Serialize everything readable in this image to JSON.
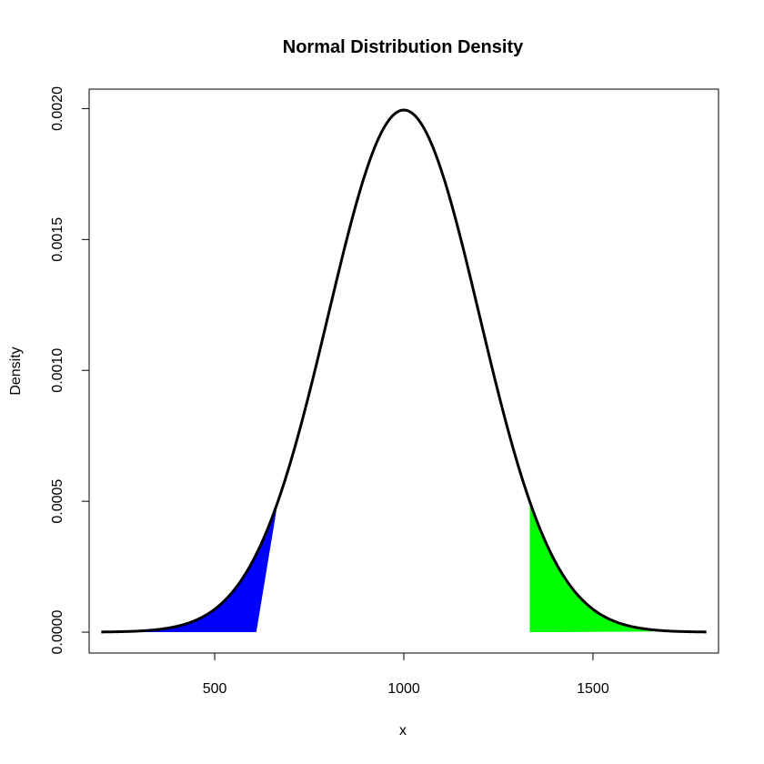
{
  "chart_data": {
    "type": "line",
    "title": "Normal Distribution Density",
    "xlabel": "x",
    "ylabel": "Density",
    "xlim": [
      168,
      1832
    ],
    "ylim": [
      -7.98e-05,
      0.0020745
    ],
    "x_ticks": [
      {
        "value": 500,
        "label": "500"
      },
      {
        "value": 1000,
        "label": "1000"
      },
      {
        "value": 1500,
        "label": "1500"
      }
    ],
    "y_ticks": [
      {
        "value": 0.0,
        "label": "0.0000"
      },
      {
        "value": 0.0005,
        "label": "0.0005"
      },
      {
        "value": 0.001,
        "label": "0.0010"
      },
      {
        "value": 0.0015,
        "label": "0.0015"
      },
      {
        "value": 0.002,
        "label": "0.0020"
      }
    ],
    "curve": {
      "distribution": "normal",
      "mean": 1000,
      "sd": 200,
      "x_from": 200,
      "x_to": 1800,
      "color": "#000000"
    },
    "shaded_regions": [
      {
        "name": "left tail",
        "color": "#0000ff",
        "x_from": 280,
        "x_to": 667,
        "closing_x": 610
      },
      {
        "name": "right tail",
        "color": "#00ff00",
        "x_from": 1333,
        "x_to": 1720,
        "closing_x": 1390
      }
    ],
    "grid": false,
    "legend": "none"
  }
}
